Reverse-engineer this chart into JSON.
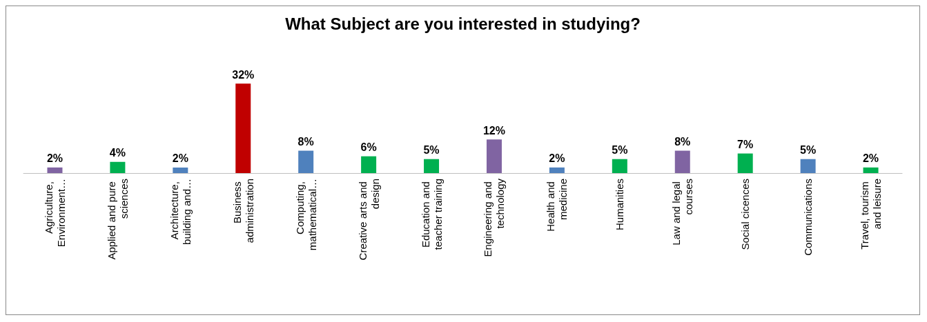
{
  "chart_data": {
    "type": "bar",
    "title": "What Subject are you interested in studying?",
    "categories": [
      "Agriculture, Environment…",
      "Applied and pure sciences",
      "Architecture, building and…",
      "Business administration",
      "Computing, mathematical…",
      "Creative arts and design",
      "Education and teacher training",
      "Engineering and technology",
      "Health and medicine",
      "Humanities",
      "Law and legal courses",
      "Social cicences",
      "Communications",
      "Travel, tourism and leisure"
    ],
    "values": [
      2,
      4,
      2,
      32,
      8,
      6,
      5,
      12,
      2,
      5,
      8,
      7,
      5,
      2
    ],
    "colors": [
      "#8064a2",
      "#00b050",
      "#4f81bd",
      "#c00000",
      "#4f81bd",
      "#00b050",
      "#00b050",
      "#8064a2",
      "#4f81bd",
      "#00b050",
      "#8064a2",
      "#00b050",
      "#4f81bd",
      "#00b050"
    ],
    "value_labels": [
      "2%",
      "4%",
      "2%",
      "32%",
      "8%",
      "6%",
      "5%",
      "12%",
      "2%",
      "5%",
      "8%",
      "7%",
      "5%",
      "2%"
    ],
    "tick_labels": "x"
  }
}
